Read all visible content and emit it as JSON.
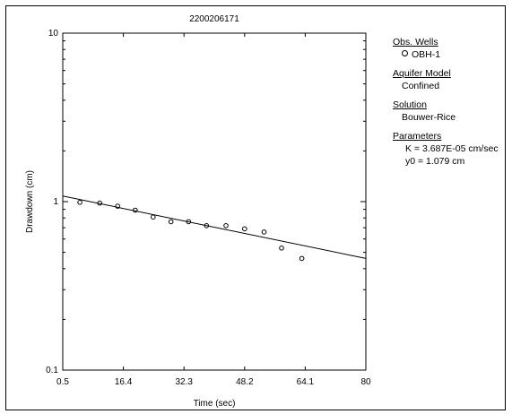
{
  "chart_data": {
    "type": "scatter",
    "title": "2200206171",
    "xlabel": "Time (sec)",
    "ylabel": "Drawdown (cm)",
    "xlim": [
      0.5,
      80
    ],
    "ylim": [
      0.1,
      10
    ],
    "y_scale": "log",
    "x_tick_labels": [
      "0.5",
      "16.4",
      "32.3",
      "48.2",
      "64.1",
      "80"
    ],
    "x_ticks": [
      0.5,
      16.4,
      32.3,
      48.2,
      64.1,
      80
    ],
    "y_tick_labels": [
      "0.1",
      "1",
      "10"
    ],
    "y_ticks": [
      0.1,
      1,
      10
    ],
    "series": [
      {
        "name": "OBH-1",
        "marker": "open-circle",
        "x": [
          5,
          10.2,
          14.9,
          19.5,
          24.2,
          28.9,
          33.5,
          38.2,
          43.3,
          48.2,
          53.3,
          57.9,
          63.2
        ],
        "y": [
          0.99,
          0.98,
          0.94,
          0.89,
          0.81,
          0.76,
          0.76,
          0.72,
          0.72,
          0.69,
          0.66,
          0.53,
          0.46
        ]
      },
      {
        "name": "Bouwer-Rice fit",
        "type": "line",
        "x": [
          0.5,
          80
        ],
        "y": [
          1.08,
          0.46
        ]
      }
    ],
    "grid": false,
    "legend_position": "right"
  },
  "legend": {
    "obs_wells_header": "Obs. Wells",
    "obs_well_1": "OBH-1",
    "aquifer_model_header": "Aquifer Model",
    "aquifer_model": "Confined",
    "solution_header": "Solution",
    "solution": "Bouwer-Rice",
    "parameters_header": "Parameters",
    "param_k": "K  = 3.687E-05 cm/sec",
    "param_y0": "y0 = 1.079 cm"
  }
}
